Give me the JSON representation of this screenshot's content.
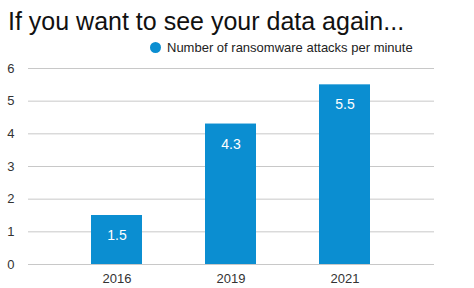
{
  "chart_data": {
    "type": "bar",
    "title": "If you want to see your data again...",
    "categories": [
      "2016",
      "2019",
      "2021"
    ],
    "series": [
      {
        "name": "Number of ransomware attacks per minute",
        "color": "#0b8ed1",
        "values": [
          1.5,
          4.3,
          5.5
        ]
      }
    ],
    "ylim": [
      0,
      6
    ],
    "yticks": [
      0,
      1,
      2,
      3,
      4,
      5,
      6
    ],
    "grid": true,
    "legend": "top",
    "data_labels": true
  }
}
